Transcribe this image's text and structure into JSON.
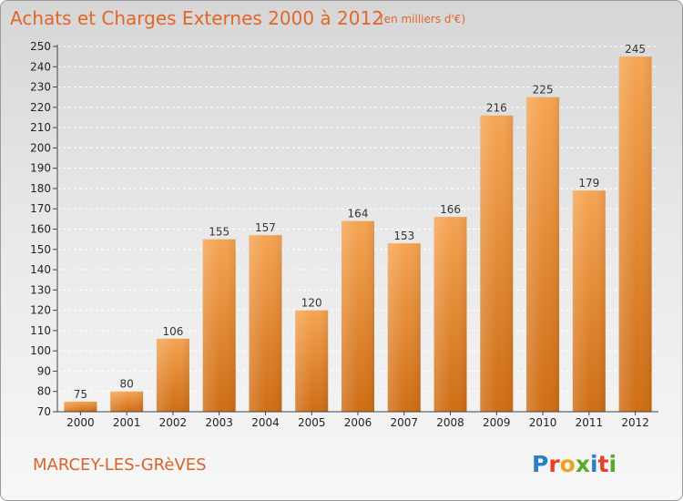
{
  "header": {
    "title": "Achats et Charges Externes 2000 à 2012",
    "subtitle": "(en milliers d'€)"
  },
  "footer": {
    "commune": "MARCEY-LES-GRèVES",
    "logo_text": "Proxiti",
    "logo_colors": [
      "#2a7fc6",
      "#e8402a",
      "#f0a020",
      "#5aaa2a",
      "#2a7fc6",
      "#e8402a",
      "#5aaa2a"
    ]
  },
  "colors": {
    "bar_light": "#f5a452",
    "bar_dark": "#cf6d14",
    "title": "#e0662a"
  },
  "chart_data": {
    "type": "bar",
    "title": "Achats et Charges Externes 2000 à 2012",
    "subtitle": "(en milliers d'€)",
    "xlabel": "",
    "ylabel": "",
    "categories": [
      "2000",
      "2001",
      "2002",
      "2003",
      "2004",
      "2005",
      "2006",
      "2007",
      "2008",
      "2009",
      "2010",
      "2011",
      "2012"
    ],
    "values": [
      75,
      80,
      106,
      155,
      157,
      120,
      164,
      153,
      166,
      216,
      225,
      179,
      245
    ],
    "ylim": [
      70,
      250
    ],
    "yticks": [
      70,
      80,
      90,
      100,
      110,
      120,
      130,
      140,
      150,
      160,
      170,
      180,
      190,
      200,
      210,
      220,
      230,
      240,
      250
    ],
    "grid": true
  }
}
